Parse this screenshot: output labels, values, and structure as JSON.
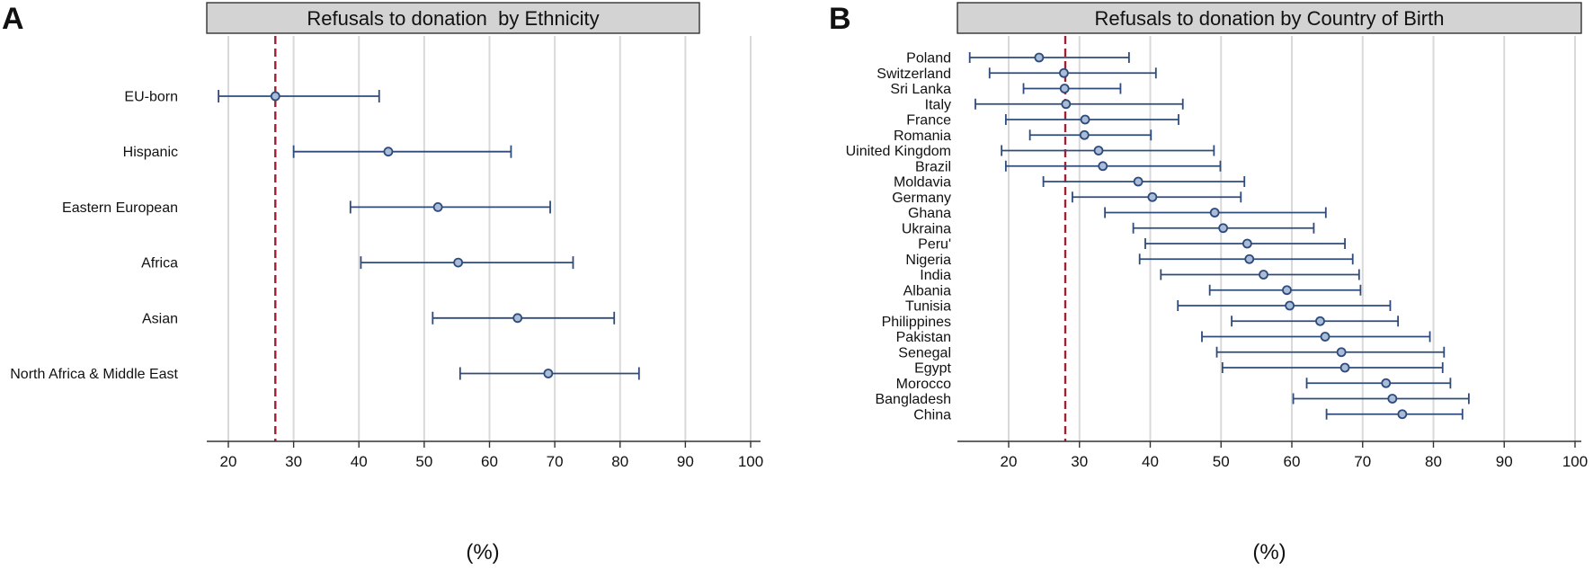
{
  "chart_data": [
    {
      "type": "dot_errorbar",
      "panel_label": "A",
      "title": "Refusals to donation  by Ethnicity",
      "xlabel": "(%)",
      "xlim": [
        17,
        102
      ],
      "xticks": [
        20,
        30,
        40,
        50,
        60,
        70,
        80,
        90,
        100
      ],
      "reference_line": 27.2,
      "grid": "vertical",
      "categories": [
        "EU-born",
        "Hispanic",
        "Eastern European",
        "Africa",
        "Asian",
        "North Africa & Middle East"
      ],
      "series": [
        {
          "name": "Refusal rate",
          "values": [
            27.2,
            44.5,
            52.1,
            55.2,
            64.3,
            69.0
          ],
          "lower": [
            18.5,
            30.0,
            38.7,
            40.3,
            51.3,
            55.5
          ],
          "upper": [
            43.1,
            63.3,
            69.3,
            72.8,
            79.1,
            82.9
          ]
        }
      ]
    },
    {
      "type": "dot_errorbar",
      "panel_label": "B",
      "title": "Refusals to donation by Country of Birth",
      "xlabel": "(%)",
      "xlim": [
        13,
        102
      ],
      "xticks": [
        20,
        30,
        40,
        50,
        60,
        70,
        80,
        90,
        100
      ],
      "reference_line": 28.0,
      "grid": "vertical",
      "categories": [
        "Poland",
        "Switzerland",
        "Sri Lanka",
        "Italy",
        "France",
        "Romania",
        "Uinited Kingdom",
        "Brazil",
        "Moldavia",
        "Germany",
        "Ghana",
        "Ukraina",
        "Peru'",
        "Nigeria",
        "India",
        "Albania",
        "Tunisia",
        "Philippines",
        "Pakistan",
        "Senegal",
        "Egypt",
        "Morocco",
        "Bangladesh",
        "China"
      ],
      "series": [
        {
          "name": "Refusal rate",
          "values": [
            24.3,
            27.8,
            27.9,
            28.1,
            30.8,
            30.7,
            32.7,
            33.3,
            38.3,
            40.3,
            49.1,
            50.3,
            53.7,
            54.0,
            56.0,
            59.3,
            59.7,
            64.0,
            64.7,
            67.0,
            67.5,
            73.3,
            74.2,
            75.6
          ],
          "lower": [
            14.5,
            17.3,
            22.1,
            15.3,
            19.6,
            23.0,
            19.0,
            19.6,
            24.9,
            29.0,
            33.6,
            37.6,
            39.3,
            38.5,
            41.5,
            48.4,
            43.9,
            51.5,
            47.3,
            49.4,
            50.2,
            62.1,
            60.2,
            64.9
          ],
          "upper": [
            37.0,
            40.8,
            35.8,
            44.6,
            44.0,
            40.1,
            49.0,
            49.9,
            53.3,
            52.8,
            64.8,
            63.1,
            67.5,
            68.6,
            69.5,
            69.7,
            73.9,
            75.0,
            79.5,
            81.5,
            81.3,
            82.4,
            85.0,
            84.1
          ]
        }
      ]
    }
  ]
}
